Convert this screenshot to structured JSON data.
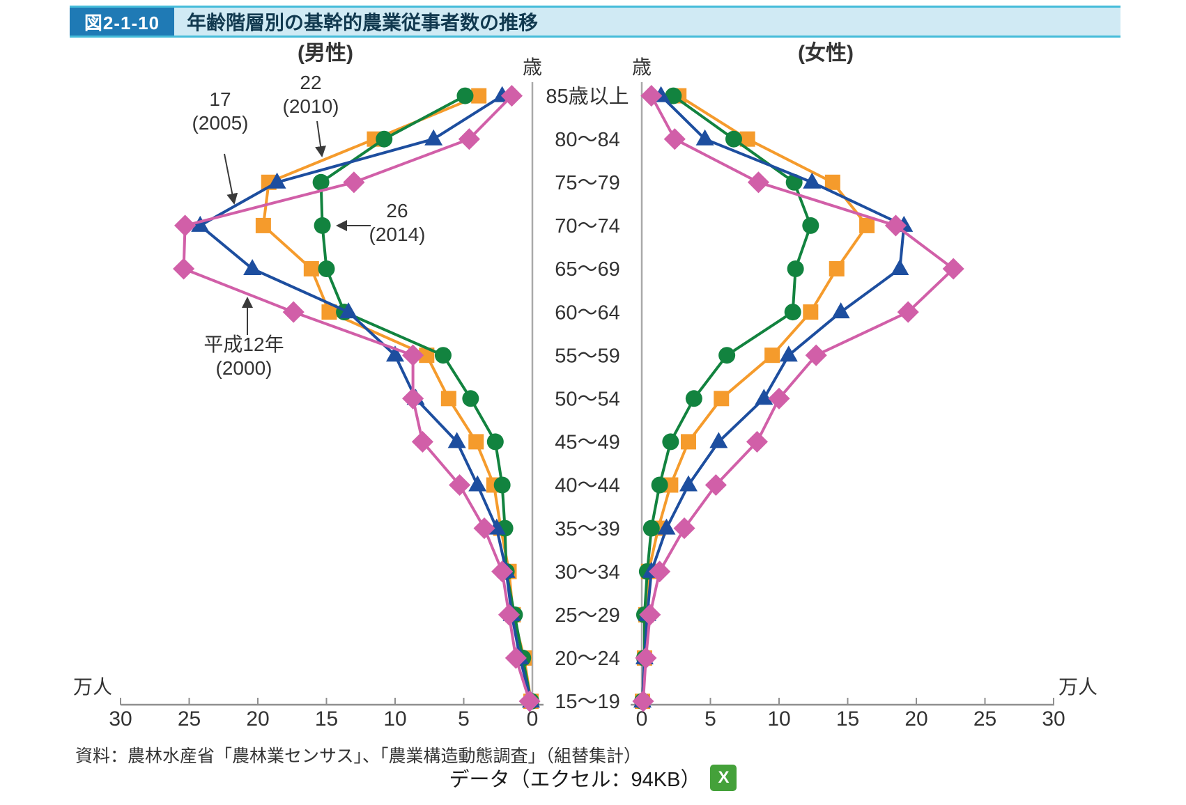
{
  "title_bar": {
    "badge": "図2-1-10",
    "title": "年齢階層別の基幹的農業従事者数の推移"
  },
  "chart": {
    "male_header": "(男性)",
    "female_header": "(女性)",
    "age_unit_left": "歳",
    "age_unit_right": "歳",
    "value_unit_left": "万人",
    "value_unit_right": "万人"
  },
  "chart_data": {
    "type": "line",
    "orientation": "population-pyramid",
    "title": "年齢階層別の基幹的農業従事者数の推移",
    "unit": "万人",
    "xlim_per_side": [
      0,
      30
    ],
    "tick_step": 5,
    "grid": false,
    "male_axis_ticks": [
      "30",
      "25",
      "20",
      "15",
      "10",
      "5",
      "0"
    ],
    "female_axis_ticks": [
      "0",
      "5",
      "10",
      "15",
      "20",
      "25",
      "30"
    ],
    "age_groups_bottom_to_top": [
      "15～19",
      "20～24",
      "25～29",
      "30～34",
      "35～39",
      "40～44",
      "45～49",
      "50～54",
      "55～59",
      "60～64",
      "65～69",
      "70～74",
      "75～79",
      "80～84",
      "85歳以上"
    ],
    "draw_order_years": [
      2010,
      2014,
      2005,
      2000
    ],
    "series": [
      {
        "name": "平成12年（2000）",
        "year": 2000,
        "color": "#d15fa8",
        "marker": "diamond",
        "male": [
          0.2,
          1.2,
          1.7,
          2.2,
          3.5,
          5.3,
          8.0,
          8.7,
          8.7,
          17.4,
          25.4,
          25.3,
          13.0,
          4.6,
          1.5
        ],
        "female": [
          0.1,
          0.3,
          0.6,
          1.3,
          3.1,
          5.4,
          8.4,
          10.0,
          12.7,
          19.4,
          22.7,
          18.5,
          8.5,
          2.4,
          0.7
        ]
      },
      {
        "name": "17（2005）",
        "year": 2005,
        "color": "#1d4e9f",
        "marker": "triangle",
        "male": [
          0.1,
          0.9,
          1.5,
          1.9,
          2.6,
          4.0,
          5.5,
          8.5,
          10.0,
          13.4,
          20.4,
          24.2,
          18.6,
          7.2,
          2.2
        ],
        "female": [
          0.05,
          0.2,
          0.4,
          0.7,
          1.8,
          3.4,
          5.6,
          8.9,
          10.7,
          14.5,
          18.8,
          19.1,
          12.4,
          4.6,
          1.4
        ]
      },
      {
        "name": "22（2010）",
        "year": 2010,
        "color": "#f59b2c",
        "marker": "square",
        "male": [
          0.1,
          0.6,
          1.4,
          1.7,
          2.3,
          2.8,
          4.1,
          6.1,
          7.7,
          14.8,
          16.1,
          19.6,
          19.2,
          11.5,
          3.9
        ],
        "female": [
          0.05,
          0.2,
          0.3,
          0.5,
          1.2,
          2.1,
          3.4,
          5.8,
          9.5,
          12.3,
          14.2,
          16.4,
          13.9,
          7.7,
          2.7
        ]
      },
      {
        "name": "26（2014）",
        "year": 2014,
        "color": "#12833f",
        "marker": "circle",
        "male": [
          0.1,
          0.7,
          1.3,
          1.9,
          2.0,
          2.2,
          2.7,
          4.5,
          6.5,
          13.7,
          15.0,
          15.3,
          15.4,
          10.8,
          4.9
        ],
        "female": [
          0.05,
          0.2,
          0.2,
          0.4,
          0.7,
          1.3,
          2.1,
          3.8,
          6.2,
          11.0,
          11.2,
          12.3,
          11.1,
          6.7,
          2.3
        ]
      }
    ]
  },
  "annotations": [
    {
      "lines": [
        "17",
        "(2005)"
      ],
      "target_year": 2005
    },
    {
      "lines": [
        "22",
        "(2010)"
      ],
      "target_year": 2010
    },
    {
      "lines": [
        "26",
        "(2014)"
      ],
      "target_year": 2014
    },
    {
      "lines": [
        "平成12年",
        "(2000)"
      ],
      "target_year": 2000
    }
  ],
  "source": "資料：農林水産省「農林業センサス」、「農業構造動態調査」（組替集計）",
  "download": {
    "label": "データ（エクセル：94KB）",
    "icon": "excel-icon"
  }
}
